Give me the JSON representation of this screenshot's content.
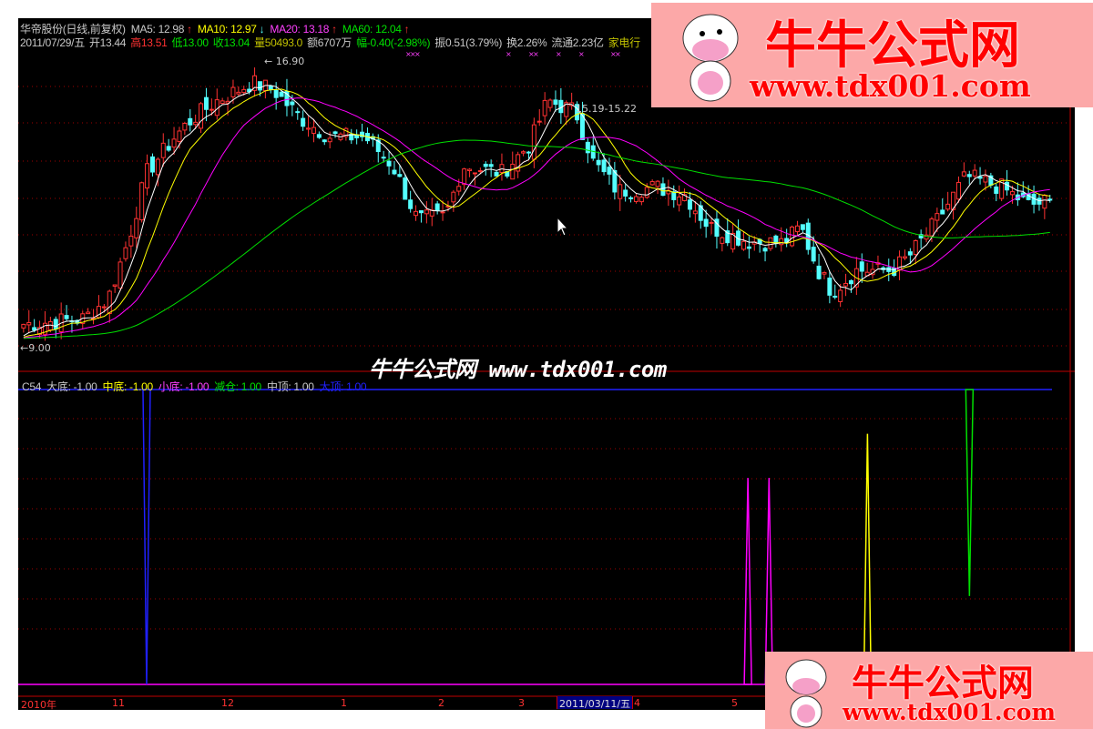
{
  "header": {
    "stock": "华帝股份(日线,前复权)",
    "ma5": "MA5: 12.98",
    "ma10": "MA10: 12.97",
    "ma20": "MA20: 13.18",
    "ma60": "MA60: 12.04",
    "date": "2011/07/29/五",
    "open": "开13.44",
    "high": "高13.51",
    "low": "低13.00",
    "close": "收13.04",
    "volume": "量50493.0",
    "amount": "额6707万",
    "change": "幅-0.40(-2.98%)",
    "amplitude": "振0.51(3.79%)",
    "turnover": "换2.26%",
    "float": "流通2.23亿",
    "sector": "家电行"
  },
  "annotations": {
    "high_label": "16.90",
    "low_label": "9.00",
    "range_label": "15.19-15.22"
  },
  "indicator": {
    "name": "C54",
    "da_di": "大底: -1.00",
    "zhong_di": "中底: -1.00",
    "xiao_di": "小底: -1.00",
    "jian_cang": "减仓: 1.00",
    "zhong_ding": "中顶: 1.00",
    "da_ding": "大顶: 1.00"
  },
  "axis": {
    "labels": [
      "2010年",
      "11",
      "12",
      "1",
      "2",
      "3",
      "4",
      "5"
    ],
    "selected_date": "2011/03/11/五"
  },
  "watermark": "牛牛公式网 www.tdx001.com",
  "logo": {
    "title": "牛牛公式网",
    "url": "www.tdx001.com"
  },
  "colors": {
    "up": "#ff3232",
    "down": "#54ffff",
    "ma5": "#ffffff",
    "ma10": "#ffff00",
    "ma20": "#ff00ff",
    "ma60": "#00e000",
    "grid": "#a00000"
  },
  "chart_data": {
    "type": "candlestick",
    "period": "daily",
    "ylim": [
      9.0,
      16.9
    ],
    "close_path": [
      [
        "2010-10-09",
        9.6
      ],
      [
        "2010-10-26",
        9.75
      ],
      [
        "2010-11-02",
        10.3
      ],
      [
        "2010-11-08",
        12.0
      ],
      [
        "2010-11-13",
        13.8
      ],
      [
        "2010-11-21",
        14.8
      ],
      [
        "2010-11-26",
        15.3
      ],
      [
        "2010-12-03",
        15.8
      ],
      [
        "2010-12-13",
        16.3
      ],
      [
        "2010-12-19",
        16.1
      ],
      [
        "2010-12-27",
        15.3
      ],
      [
        "2011-01-04",
        14.8
      ],
      [
        "2011-01-14",
        14.8
      ],
      [
        "2011-01-22",
        14.0
      ],
      [
        "2011-01-29",
        12.5
      ],
      [
        "2011-02-06",
        12.6
      ],
      [
        "2011-02-11",
        14.0
      ],
      [
        "2011-02-22",
        13.8
      ],
      [
        "2011-03-02",
        14.6
      ],
      [
        "2011-03-07",
        15.8
      ],
      [
        "2011-03-15",
        15.5
      ],
      [
        "2011-03-20",
        14.1
      ],
      [
        "2011-03-27",
        13.3
      ],
      [
        "2011-04-07",
        13.4
      ],
      [
        "2011-04-15",
        13.2
      ],
      [
        "2011-04-22",
        12.3
      ],
      [
        "2011-05-03",
        11.9
      ],
      [
        "2011-05-13",
        11.85
      ],
      [
        "2011-05-18",
        12.3
      ],
      [
        "2011-05-23",
        11.1
      ],
      [
        "2011-05-27",
        10.5
      ],
      [
        "2011-06-03",
        11.1
      ],
      [
        "2011-06-13",
        11.1
      ],
      [
        "2011-06-18",
        11.5
      ],
      [
        "2011-06-26",
        12.5
      ],
      [
        "2011-07-04",
        13.7
      ],
      [
        "2011-07-14",
        13.4
      ],
      [
        "2011-07-22",
        12.9
      ],
      [
        "2011-07-29",
        13.04
      ]
    ],
    "series": [
      {
        "name": "MA5"
      },
      {
        "name": "MA10"
      },
      {
        "name": "MA20"
      },
      {
        "name": "MA60"
      }
    ],
    "indicator_signals": [
      {
        "series": "大顶",
        "date": "2010-11-13",
        "value": -1.0,
        "color": "#2020ff"
      },
      {
        "series": "中项",
        "date": "2011-07-05",
        "value": -0.4,
        "color": "#00e000"
      },
      {
        "series": "小底",
        "date": "2011-05-03",
        "value": 0.4,
        "color": "#ff00ff"
      },
      {
        "series": "小底",
        "date": "2011-05-09",
        "value": 0.4,
        "color": "#ff00ff"
      },
      {
        "series": "中底",
        "date": "2011-06-06",
        "value": 0.7,
        "color": "#ffff00"
      }
    ]
  }
}
